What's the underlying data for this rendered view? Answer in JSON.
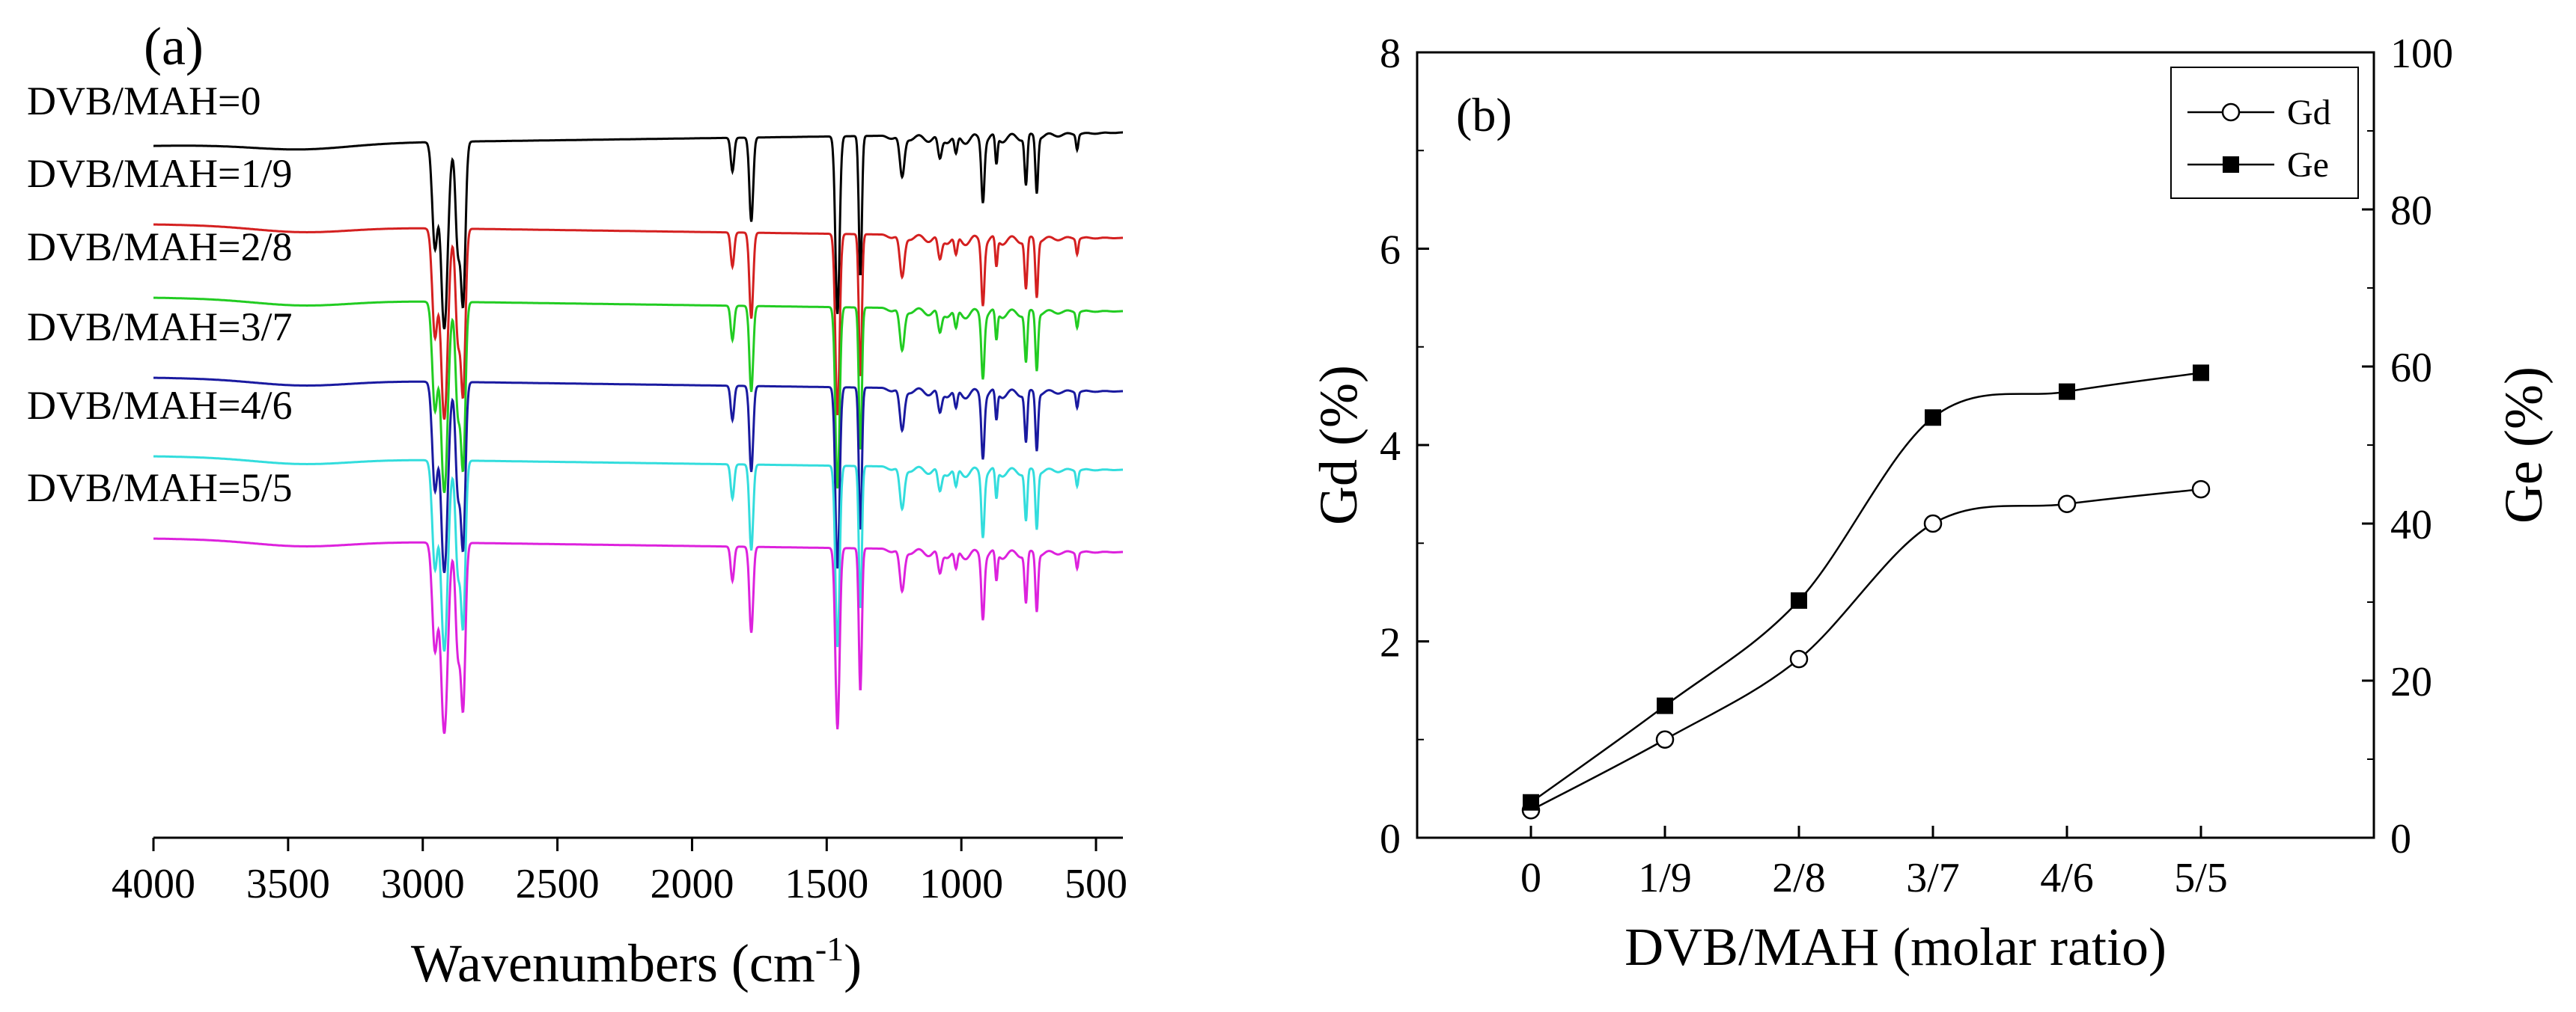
{
  "chart_data": [
    {
      "panel": "(a)",
      "type": "line",
      "xlabel": "Wavenumbers (cm",
      "xlabel_sup": "-1",
      "xlabel_close": ")",
      "xlim": [
        4000,
        400
      ],
      "x_ticks": [
        "4000",
        "3500",
        "3000",
        "2500",
        "2000",
        "1500",
        "1000",
        "500"
      ],
      "x_tick_values": [
        4000,
        3500,
        3000,
        2500,
        2000,
        1500,
        1000,
        500
      ],
      "y_axis": "none (stacked transmittance spectra, arbitrary offset)",
      "series": [
        {
          "name": "DVB/MAH=0",
          "color": "#000000",
          "offset": 0
        },
        {
          "name": "DVB/MAH=1/9",
          "color": "#d42020",
          "offset": 1
        },
        {
          "name": "DVB/MAH=2/8",
          "color": "#22cc22",
          "offset": 2
        },
        {
          "name": "DVB/MAH=3/7",
          "color": "#1a1aa0",
          "offset": 3
        },
        {
          "name": "DVB/MAH=4/6",
          "color": "#33dddd",
          "offset": 4
        },
        {
          "name": "DVB/MAH=5/5",
          "color": "#dd22dd",
          "offset": 5
        }
      ],
      "absorption_bands_cm1": [
        2920,
        2850,
        1850,
        1780,
        1460,
        1375,
        1220,
        920,
        720
      ]
    },
    {
      "panel": "(b)",
      "type": "line",
      "xlabel": "DVB/MAH (molar ratio)",
      "ylabel": "Gd (%)",
      "y2label": "Ge (%)",
      "categories": [
        "0",
        "1/9",
        "2/8",
        "3/7",
        "4/6",
        "5/5"
      ],
      "ylim": [
        0,
        8
      ],
      "y_ticks": [
        0,
        2,
        4,
        6,
        8
      ],
      "y2lim": [
        0,
        100
      ],
      "y2_ticks": [
        0,
        20,
        40,
        60,
        80,
        100
      ],
      "series": [
        {
          "name": "Gd",
          "axis": "left",
          "marker": "open-circle",
          "values": [
            0.28,
            1.0,
            1.82,
            3.2,
            3.4,
            3.55
          ]
        },
        {
          "name": "Ge",
          "axis": "right",
          "marker": "filled-square",
          "values": [
            4.5,
            16.8,
            30.2,
            53.5,
            56.8,
            59.2
          ]
        }
      ],
      "legend": "top-right"
    }
  ]
}
